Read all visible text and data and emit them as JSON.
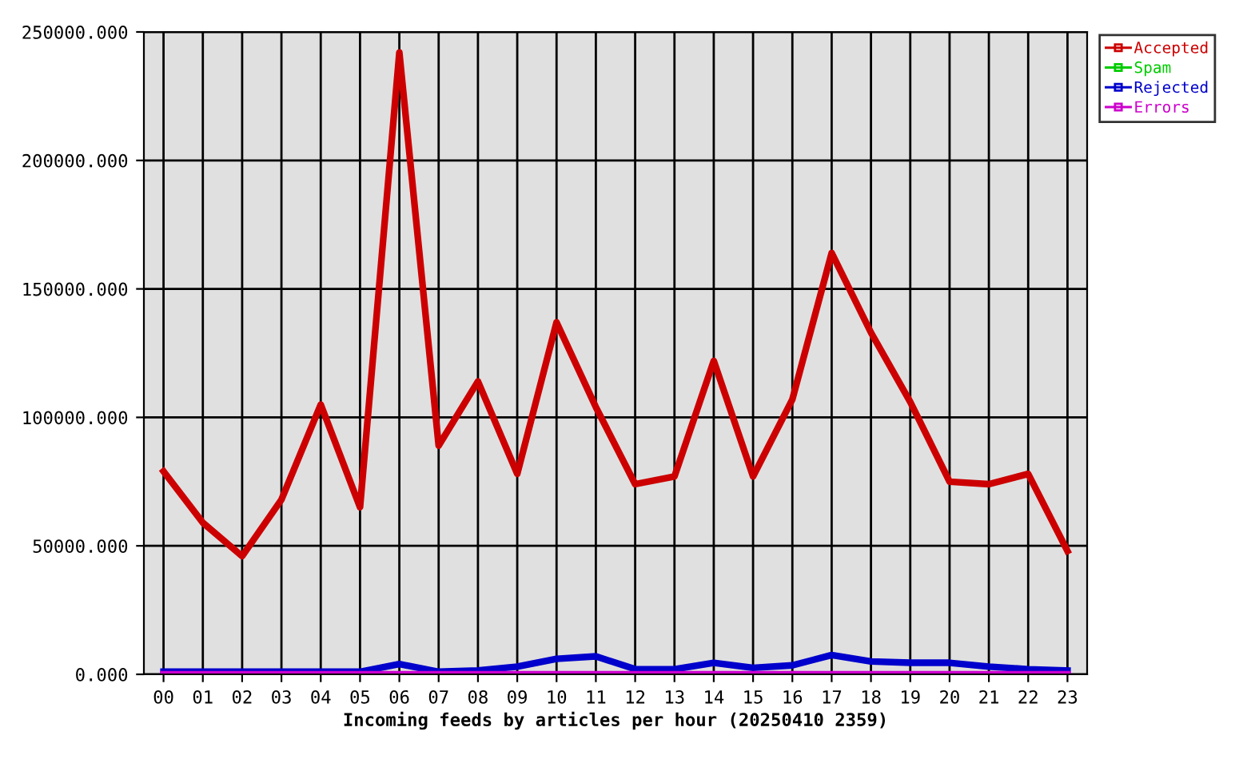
{
  "chart_data": {
    "type": "line",
    "xlabel": "Incoming feeds by articles per hour (20250410 2359)",
    "categories": [
      "00",
      "01",
      "02",
      "03",
      "04",
      "05",
      "06",
      "07",
      "08",
      "09",
      "10",
      "11",
      "12",
      "13",
      "14",
      "15",
      "16",
      "17",
      "18",
      "19",
      "20",
      "21",
      "22",
      "23"
    ],
    "series": [
      {
        "name": "Accepted",
        "color": "#cc0000",
        "values": [
          79000,
          59000,
          46000,
          68000,
          105000,
          65000,
          242000,
          89000,
          114000,
          78000,
          137000,
          104000,
          74000,
          77000,
          122000,
          77000,
          107000,
          164000,
          133000,
          106000,
          75000,
          74000,
          78000,
          48000
        ]
      },
      {
        "name": "Spam",
        "color": "#00cc00",
        "values": [
          null,
          null,
          null,
          null,
          null,
          null,
          null,
          null,
          null,
          null,
          null,
          null,
          null,
          null,
          null,
          null,
          null,
          null,
          null,
          null,
          null,
          null,
          null,
          null
        ]
      },
      {
        "name": "Rejected",
        "color": "#0000cc",
        "values": [
          1000,
          1000,
          1000,
          1000,
          1000,
          1000,
          4000,
          1000,
          1500,
          3000,
          6000,
          7000,
          2000,
          2000,
          4500,
          2500,
          3500,
          7500,
          5000,
          4500,
          4500,
          3000,
          2000,
          1500
        ]
      },
      {
        "name": "Errors",
        "color": "#cc00cc",
        "values": [
          0,
          0,
          0,
          0,
          0,
          0,
          0,
          0,
          0,
          0,
          0,
          0,
          0,
          0,
          0,
          0,
          0,
          0,
          0,
          0,
          0,
          0,
          0,
          0
        ]
      }
    ],
    "ylim": [
      0,
      250000
    ],
    "yticks": [
      {
        "value": 0,
        "label": "0.000"
      },
      {
        "value": 50000,
        "label": "50000.000"
      },
      {
        "value": 100000,
        "label": "100000.000"
      },
      {
        "value": 150000,
        "label": "150000.000"
      },
      {
        "value": 200000,
        "label": "200000.000"
      },
      {
        "value": 250000,
        "label": "250000.000"
      }
    ],
    "grid": true,
    "legend": "top right",
    "line_style": "solid"
  }
}
